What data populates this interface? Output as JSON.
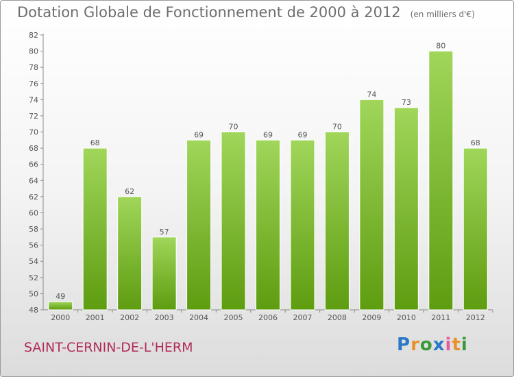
{
  "title": "Dotation Globale de Fonctionnement de 2000 à 2012",
  "unit": "(en milliers d'€)",
  "commune": "SAINT-CERNIN-DE-L'HERM",
  "logo": {
    "letters": [
      "P",
      "r",
      "o",
      "x",
      "i",
      "t",
      "i"
    ]
  },
  "colors": {
    "bar_light": "#a0d65a",
    "bar_dark": "#5e9c10",
    "title": "#6d6d6d",
    "commune": "#b22a5a"
  },
  "chart_data": {
    "type": "bar",
    "categories": [
      "2000",
      "2001",
      "2002",
      "2003",
      "2004",
      "2005",
      "2006",
      "2007",
      "2008",
      "2009",
      "2010",
      "2011",
      "2012"
    ],
    "values": [
      49,
      68,
      62,
      57,
      69,
      70,
      69,
      69,
      70,
      74,
      73,
      80,
      68
    ],
    "title": "Dotation Globale de Fonctionnement de 2000 à 2012",
    "ylim": [
      48,
      82
    ],
    "yticks": [
      48,
      50,
      52,
      54,
      56,
      58,
      60,
      62,
      64,
      66,
      68,
      70,
      72,
      74,
      76,
      78,
      80,
      82
    ],
    "grid": false
  }
}
